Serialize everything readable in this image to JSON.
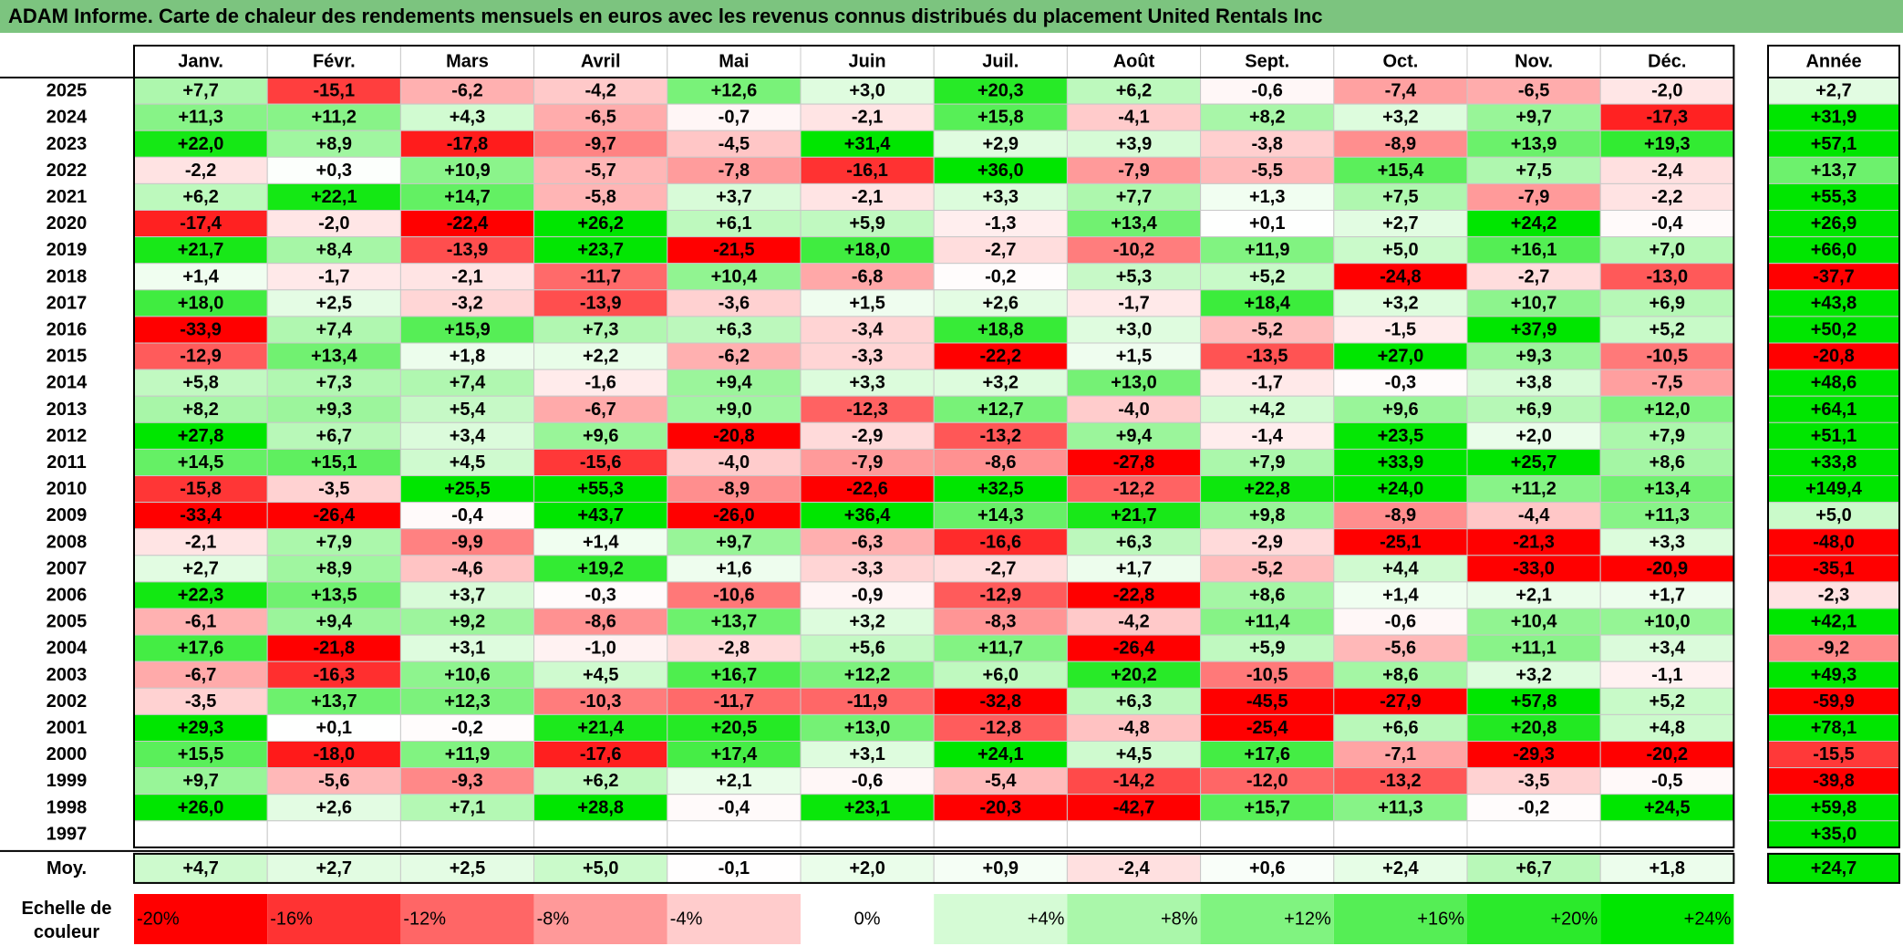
{
  "title": "ADAM Informe. Carte de chaleur des rendements mensuels en euros avec les revenus connus distribués du placement United Rentals Inc",
  "chart_data": {
    "type": "heatmap",
    "title": "ADAM Informe. Carte de chaleur des rendements mensuels en euros avec les revenus connus distribués du placement United Rentals Inc",
    "months": [
      "Janv.",
      "Févr.",
      "Mars",
      "Avril",
      "Mai",
      "Juin",
      "Juil.",
      "Août",
      "Sept.",
      "Oct.",
      "Nov.",
      "Déc."
    ],
    "year_header": "Année",
    "avg_label": "Moy.",
    "scale_label_line1": "Echelle de",
    "scale_label_line2": "couleur",
    "rows": [
      {
        "year": "2025",
        "values": [
          "+7,7",
          "-15,1",
          "-6,2",
          "-4,2",
          "+12,6",
          "+3,0",
          "+20,3",
          "+6,2",
          "-0,6",
          "-7,4",
          "-6,5",
          "-2,0"
        ],
        "annual": "+2,7"
      },
      {
        "year": "2024",
        "values": [
          "+11,3",
          "+11,2",
          "+4,3",
          "-6,5",
          "-0,7",
          "-2,1",
          "+15,8",
          "-4,1",
          "+8,2",
          "+3,2",
          "+9,7",
          "-17,3"
        ],
        "annual": "+31,9"
      },
      {
        "year": "2023",
        "values": [
          "+22,0",
          "+8,9",
          "-17,8",
          "-9,7",
          "-4,5",
          "+31,4",
          "+2,9",
          "+3,9",
          "-3,8",
          "-8,9",
          "+13,9",
          "+19,3"
        ],
        "annual": "+57,1"
      },
      {
        "year": "2022",
        "values": [
          "-2,2",
          "+0,3",
          "+10,9",
          "-5,7",
          "-7,8",
          "-16,1",
          "+36,0",
          "-7,9",
          "-5,5",
          "+15,4",
          "+7,5",
          "-2,4"
        ],
        "annual": "+13,7"
      },
      {
        "year": "2021",
        "values": [
          "+6,2",
          "+22,1",
          "+14,7",
          "-5,8",
          "+3,7",
          "-2,1",
          "+3,3",
          "+7,7",
          "+1,3",
          "+7,5",
          "-7,9",
          "-2,2"
        ],
        "annual": "+55,3"
      },
      {
        "year": "2020",
        "values": [
          "-17,4",
          "-2,0",
          "-22,4",
          "+26,2",
          "+6,1",
          "+5,9",
          "-1,3",
          "+13,4",
          "+0,1",
          "+2,7",
          "+24,2",
          "-0,4"
        ],
        "annual": "+26,9"
      },
      {
        "year": "2019",
        "values": [
          "+21,7",
          "+8,4",
          "-13,9",
          "+23,7",
          "-21,5",
          "+18,0",
          "-2,7",
          "-10,2",
          "+11,9",
          "+5,0",
          "+16,1",
          "+7,0"
        ],
        "annual": "+66,0"
      },
      {
        "year": "2018",
        "values": [
          "+1,4",
          "-1,7",
          "-2,1",
          "-11,7",
          "+10,4",
          "-6,8",
          "-0,2",
          "+5,3",
          "+5,2",
          "-24,8",
          "-2,7",
          "-13,0"
        ],
        "annual": "-37,7"
      },
      {
        "year": "2017",
        "values": [
          "+18,0",
          "+2,5",
          "-3,2",
          "-13,9",
          "-3,6",
          "+1,5",
          "+2,6",
          "-1,7",
          "+18,4",
          "+3,2",
          "+10,7",
          "+6,9"
        ],
        "annual": "+43,8"
      },
      {
        "year": "2016",
        "values": [
          "-33,9",
          "+7,4",
          "+15,9",
          "+7,3",
          "+6,3",
          "-3,4",
          "+18,8",
          "+3,0",
          "-5,2",
          "-1,5",
          "+37,9",
          "+5,2"
        ],
        "annual": "+50,2"
      },
      {
        "year": "2015",
        "values": [
          "-12,9",
          "+13,4",
          "+1,8",
          "+2,2",
          "-6,2",
          "-3,3",
          "-22,2",
          "+1,5",
          "-13,5",
          "+27,0",
          "+9,3",
          "-10,5"
        ],
        "annual": "-20,8"
      },
      {
        "year": "2014",
        "values": [
          "+5,8",
          "+7,3",
          "+7,4",
          "-1,6",
          "+9,4",
          "+3,3",
          "+3,2",
          "+13,0",
          "-1,7",
          "-0,3",
          "+3,8",
          "-7,5"
        ],
        "annual": "+48,6"
      },
      {
        "year": "2013",
        "values": [
          "+8,2",
          "+9,3",
          "+5,4",
          "-6,7",
          "+9,0",
          "-12,3",
          "+12,7",
          "-4,0",
          "+4,2",
          "+9,6",
          "+6,9",
          "+12,0"
        ],
        "annual": "+64,1"
      },
      {
        "year": "2012",
        "values": [
          "+27,8",
          "+6,7",
          "+3,4",
          "+9,6",
          "-20,8",
          "-2,9",
          "-13,2",
          "+9,4",
          "-1,4",
          "+23,5",
          "+2,0",
          "+7,9"
        ],
        "annual": "+51,1"
      },
      {
        "year": "2011",
        "values": [
          "+14,5",
          "+15,1",
          "+4,5",
          "-15,6",
          "-4,0",
          "-7,9",
          "-8,6",
          "-27,8",
          "+7,9",
          "+33,9",
          "+25,7",
          "+8,6"
        ],
        "annual": "+33,8"
      },
      {
        "year": "2010",
        "values": [
          "-15,8",
          "-3,5",
          "+25,5",
          "+55,3",
          "-8,9",
          "-22,6",
          "+32,5",
          "-12,2",
          "+22,8",
          "+24,0",
          "+11,2",
          "+13,4"
        ],
        "annual": "+149,4"
      },
      {
        "year": "2009",
        "values": [
          "-33,4",
          "-26,4",
          "-0,4",
          "+43,7",
          "-26,0",
          "+36,4",
          "+14,3",
          "+21,7",
          "+9,8",
          "-8,9",
          "-4,4",
          "+11,3"
        ],
        "annual": "+5,0"
      },
      {
        "year": "2008",
        "values": [
          "-2,1",
          "+7,9",
          "-9,9",
          "+1,4",
          "+9,7",
          "-6,3",
          "-16,6",
          "+6,3",
          "-2,9",
          "-25,1",
          "-21,3",
          "+3,3"
        ],
        "annual": "-48,0"
      },
      {
        "year": "2007",
        "values": [
          "+2,7",
          "+8,9",
          "-4,6",
          "+19,2",
          "+1,6",
          "-3,3",
          "-2,7",
          "+1,7",
          "-5,2",
          "+4,4",
          "-33,0",
          "-20,9"
        ],
        "annual": "-35,1"
      },
      {
        "year": "2006",
        "values": [
          "+22,3",
          "+13,5",
          "+3,7",
          "-0,3",
          "-10,6",
          "-0,9",
          "-12,9",
          "-22,8",
          "+8,6",
          "+1,4",
          "+2,1",
          "+1,7"
        ],
        "annual": "-2,3"
      },
      {
        "year": "2005",
        "values": [
          "-6,1",
          "+9,4",
          "+9,2",
          "-8,6",
          "+13,7",
          "+3,2",
          "-8,3",
          "-4,2",
          "+11,4",
          "-0,6",
          "+10,4",
          "+10,0"
        ],
        "annual": "+42,1"
      },
      {
        "year": "2004",
        "values": [
          "+17,6",
          "-21,8",
          "+3,1",
          "-1,0",
          "-2,8",
          "+5,6",
          "+11,7",
          "-26,4",
          "+5,9",
          "-5,6",
          "+11,1",
          "+3,4"
        ],
        "annual": "-9,2"
      },
      {
        "year": "2003",
        "values": [
          "-6,7",
          "-16,3",
          "+10,6",
          "+4,5",
          "+16,7",
          "+12,2",
          "+6,0",
          "+20,2",
          "-10,5",
          "+8,6",
          "+3,2",
          "-1,1"
        ],
        "annual": "+49,3"
      },
      {
        "year": "2002",
        "values": [
          "-3,5",
          "+13,7",
          "+12,3",
          "-10,3",
          "-11,7",
          "-11,9",
          "-32,8",
          "+6,3",
          "-45,5",
          "-27,9",
          "+57,8",
          "+5,2"
        ],
        "annual": "-59,9"
      },
      {
        "year": "2001",
        "values": [
          "+29,3",
          "+0,1",
          "-0,2",
          "+21,4",
          "+20,5",
          "+13,0",
          "-12,8",
          "-4,8",
          "-25,4",
          "+6,6",
          "+20,8",
          "+4,8"
        ],
        "annual": "+78,1"
      },
      {
        "year": "2000",
        "values": [
          "+15,5",
          "-18,0",
          "+11,9",
          "-17,6",
          "+17,4",
          "+3,1",
          "+24,1",
          "+4,5",
          "+17,6",
          "-7,1",
          "-29,3",
          "-20,2"
        ],
        "annual": "-15,5"
      },
      {
        "year": "1999",
        "values": [
          "+9,7",
          "-5,6",
          "-9,3",
          "+6,2",
          "+2,1",
          "-0,6",
          "-5,4",
          "-14,2",
          "-12,0",
          "-13,2",
          "-3,5",
          "-0,5"
        ],
        "annual": "-39,8"
      },
      {
        "year": "1998",
        "values": [
          "+26,0",
          "+2,6",
          "+7,1",
          "+28,8",
          "-0,4",
          "+23,1",
          "-20,3",
          "-42,7",
          "+15,7",
          "+11,3",
          "-0,2",
          "+24,5"
        ],
        "annual": "+59,8"
      },
      {
        "year": "1997",
        "values": [
          "",
          "",
          "",
          "",
          "",
          "",
          "",
          "",
          "",
          "",
          "",
          ""
        ],
        "annual": "+35,0"
      }
    ],
    "averages": {
      "values": [
        "+4,7",
        "+2,7",
        "+2,5",
        "+5,0",
        "-0,1",
        "+2,0",
        "+0,9",
        "-2,4",
        "+0,6",
        "+2,4",
        "+6,7",
        "+1,8"
      ],
      "annual": "+24,7"
    },
    "color_scale": [
      {
        "label": "-20%",
        "value": -20
      },
      {
        "label": "-16%",
        "value": -16
      },
      {
        "label": "-12%",
        "value": -12
      },
      {
        "label": "-8%",
        "value": -8
      },
      {
        "label": "-4%",
        "value": -4
      },
      {
        "label": "0%",
        "value": 0
      },
      {
        "label": "+4%",
        "value": 4
      },
      {
        "label": "+8%",
        "value": 8
      },
      {
        "label": "+12%",
        "value": 12
      },
      {
        "label": "+16%",
        "value": 16
      },
      {
        "label": "+20%",
        "value": 20
      },
      {
        "label": "+24%",
        "value": 24
      }
    ]
  }
}
